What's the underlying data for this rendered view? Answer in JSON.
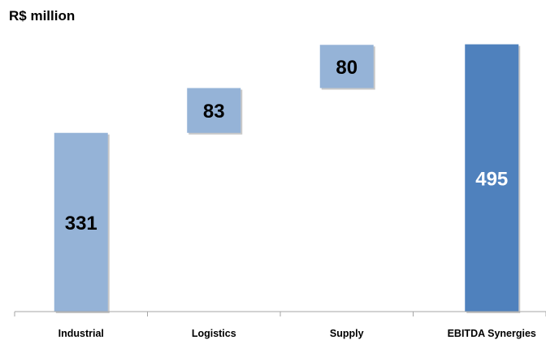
{
  "unit_label": "R$ million",
  "colors": {
    "step": "#95b3d7",
    "total": "#4f81bd",
    "axis": "#a6a6a6"
  },
  "chart_data": {
    "type": "bar",
    "subtype": "waterfall",
    "title": "",
    "ylabel": "R$ million",
    "categories": [
      "Industrial",
      "Logistics",
      "Supply",
      "EBITDA Synergies"
    ],
    "values": [
      331,
      83,
      80,
      495
    ],
    "bases": [
      0,
      331,
      414,
      0
    ],
    "is_total": [
      false,
      false,
      false,
      true
    ],
    "ylim": [
      0,
      550
    ],
    "grid": false,
    "legend": "none"
  }
}
